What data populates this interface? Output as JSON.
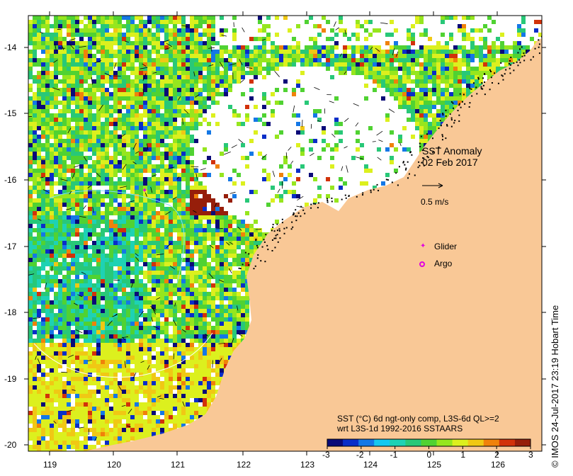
{
  "title": "SST Anomaly",
  "date": "02 Feb 2017",
  "velocity_scale_label": "0.5 m/s",
  "legend": {
    "glider_label": "Glider",
    "argo_label": "Argo",
    "marker_color": "#e000e0"
  },
  "colorbar": {
    "caption_line1": "SST (°C) 6d ngt-only comp, L3S-6d QL>=2",
    "caption_line2": "wrt L3S-1d 1992-2016 SSTAARS",
    "ticks": [
      "-3",
      "-2",
      "-1",
      "0",
      "1",
      "2",
      "3"
    ],
    "colors": [
      "#0a0a78",
      "#0a2ec8",
      "#1478e6",
      "#14c8f0",
      "#1ed2b4",
      "#28c878",
      "#50d232",
      "#96e61e",
      "#dcf01e",
      "#f0c814",
      "#f0820a",
      "#d2320a",
      "#961e0a"
    ]
  },
  "credit": "© IMOS 24-Jul-2017 23:19 Hobart Time",
  "axes": {
    "x_ticks": [
      "119",
      "120",
      "121",
      "122",
      "123",
      "124",
      "125",
      "126"
    ],
    "y_ticks": [
      "-14",
      "-15",
      "-16",
      "-17",
      "-18",
      "-19",
      "-20"
    ]
  },
  "colors": {
    "land": "#f9c896",
    "frame": "#000000"
  }
}
